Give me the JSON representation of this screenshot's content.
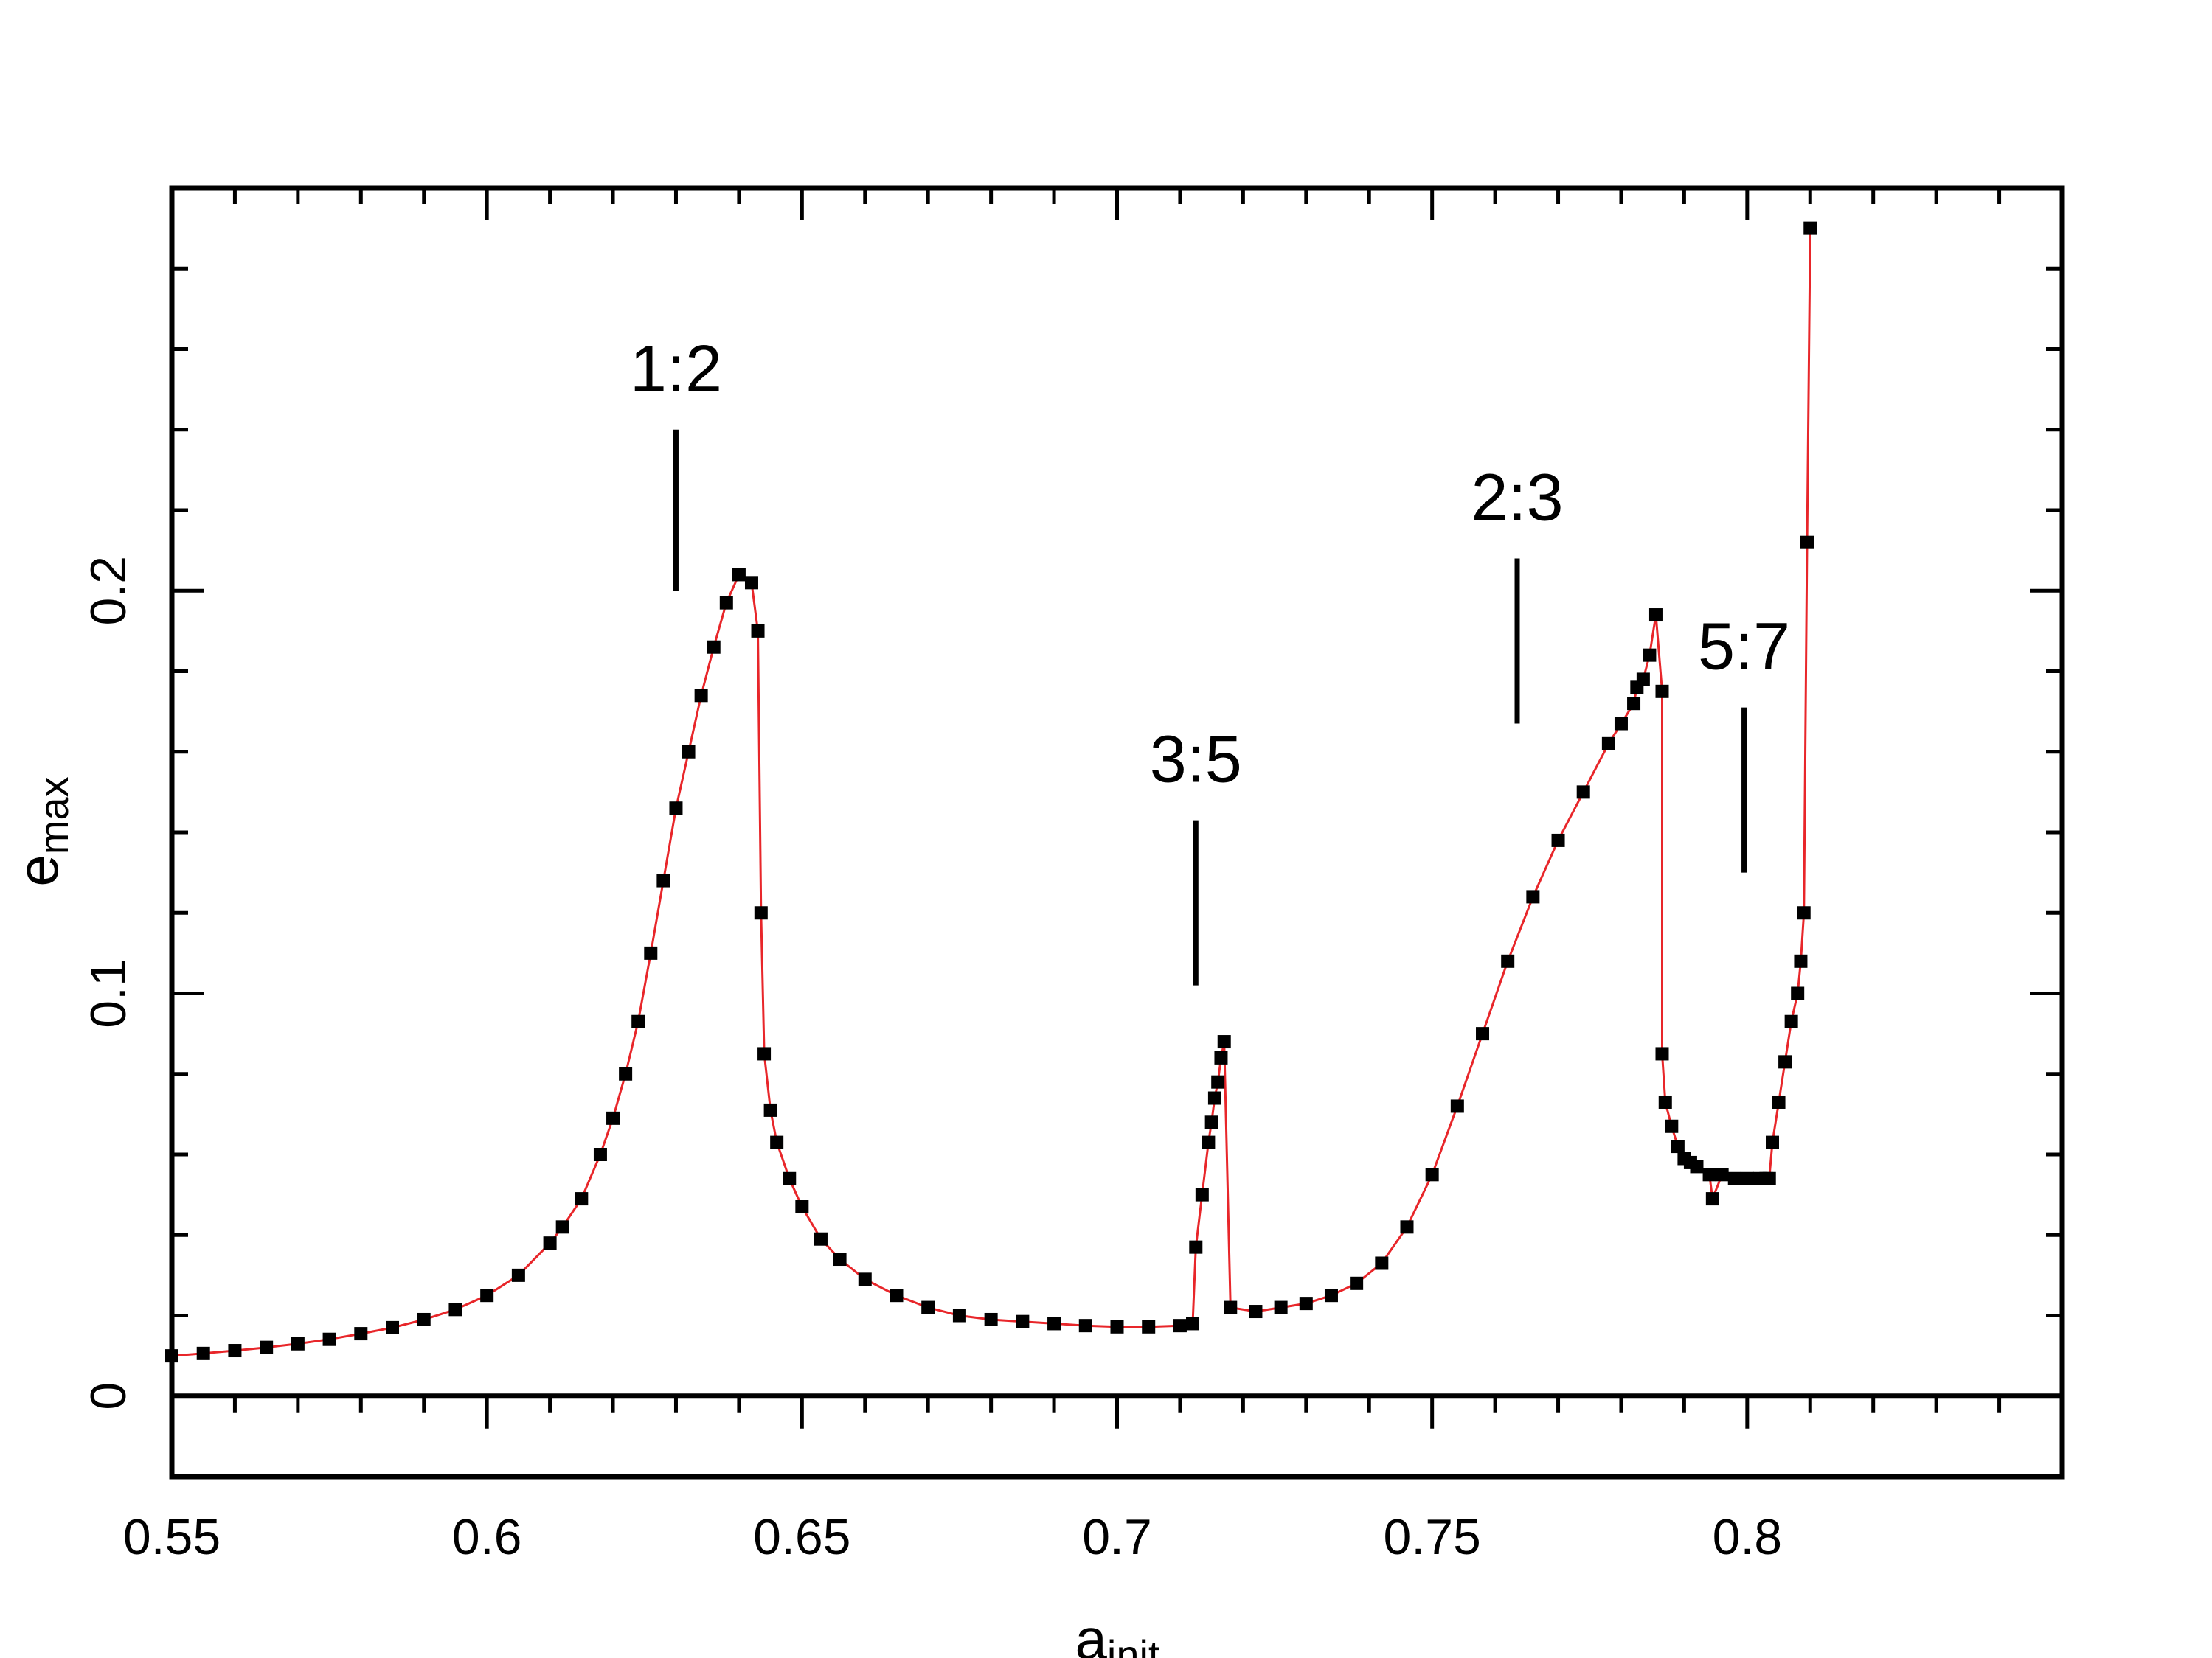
{
  "chart_data": {
    "type": "scatter",
    "xlabel": "a",
    "xlabel_sub": "init",
    "ylabel": "e",
    "ylabel_sub": "max",
    "xlim": [
      0.55,
      0.85
    ],
    "ylim": [
      -0.02,
      0.3
    ],
    "x_ticks": [
      0.55,
      0.6,
      0.65,
      0.7,
      0.75,
      0.8
    ],
    "x_tick_labels": [
      "0.55",
      "0.6",
      "0.65",
      "0.7",
      "0.75",
      "0.8"
    ],
    "y_ticks": [
      0,
      0.1,
      0.2
    ],
    "y_tick_labels": [
      "0",
      "0.1",
      "0.2"
    ],
    "grid": false,
    "legend": "none",
    "line_color": "#e8262a",
    "marker_color": "#000000",
    "annotations": [
      {
        "text": "1:2",
        "x": 0.63,
        "y_top": 0.24,
        "y_bottom": 0.2
      },
      {
        "text": "3:5",
        "x": 0.7125,
        "y_top": 0.143,
        "y_bottom": 0.102
      },
      {
        "text": "2:3",
        "x": 0.7635,
        "y_top": 0.208,
        "y_bottom": 0.167
      },
      {
        "text": "5:7",
        "x": 0.7995,
        "y_top": 0.171,
        "y_bottom": 0.13
      }
    ],
    "series": [
      {
        "x": [
          0.55,
          0.555,
          0.56,
          0.565,
          0.57,
          0.575,
          0.58,
          0.585,
          0.59,
          0.595,
          0.6,
          0.605,
          0.61,
          0.612,
          0.615,
          0.618,
          0.62,
          0.622,
          0.624,
          0.626,
          0.628,
          0.63,
          0.632,
          0.634,
          0.636,
          0.638,
          0.64,
          0.642,
          0.643,
          0.6435,
          0.644,
          0.645,
          0.646,
          0.648,
          0.65,
          0.653,
          0.656,
          0.66,
          0.665,
          0.67,
          0.675,
          0.68,
          0.685,
          0.69,
          0.695,
          0.7,
          0.705,
          0.71,
          0.712,
          0.7125,
          0.7135,
          0.7145,
          0.715,
          0.7155,
          0.716,
          0.7165,
          0.717,
          0.718,
          0.722,
          0.726,
          0.73,
          0.734,
          0.738,
          0.742,
          0.746,
          0.75,
          0.754,
          0.758,
          0.762,
          0.766,
          0.77,
          0.774,
          0.778,
          0.78,
          0.782,
          0.7825,
          0.7835,
          0.7845,
          0.7855,
          0.7865,
          0.7865,
          0.787,
          0.788,
          0.789,
          0.79,
          0.791,
          0.792,
          0.794,
          0.7945,
          0.796,
          0.798,
          0.8,
          0.802,
          0.803,
          0.8035,
          0.804,
          0.805,
          0.806,
          0.807,
          0.808,
          0.8085,
          0.809,
          0.8095,
          0.81
        ],
        "y": [
          0.01,
          0.0106,
          0.0113,
          0.0121,
          0.013,
          0.0141,
          0.0155,
          0.017,
          0.019,
          0.0215,
          0.025,
          0.03,
          0.038,
          0.042,
          0.049,
          0.06,
          0.069,
          0.08,
          0.093,
          0.11,
          0.128,
          0.146,
          0.16,
          0.174,
          0.186,
          0.197,
          0.204,
          0.202,
          0.19,
          0.12,
          0.085,
          0.071,
          0.063,
          0.054,
          0.047,
          0.039,
          0.034,
          0.029,
          0.025,
          0.022,
          0.02,
          0.019,
          0.0185,
          0.018,
          0.0175,
          0.0172,
          0.0172,
          0.0175,
          0.018,
          0.037,
          0.05,
          0.063,
          0.068,
          0.074,
          0.078,
          0.084,
          0.088,
          0.022,
          0.021,
          0.022,
          0.023,
          0.025,
          0.028,
          0.033,
          0.042,
          0.055,
          0.072,
          0.09,
          0.108,
          0.124,
          0.138,
          0.15,
          0.162,
          0.167,
          0.172,
          0.176,
          0.178,
          0.184,
          0.194,
          0.175,
          0.085,
          0.073,
          0.067,
          0.062,
          0.059,
          0.058,
          0.057,
          0.055,
          0.049,
          0.055,
          0.054,
          0.054,
          0.054,
          0.054,
          0.054,
          0.063,
          0.073,
          0.083,
          0.093,
          0.1,
          0.108,
          0.12,
          0.212,
          0.29
        ]
      }
    ]
  }
}
